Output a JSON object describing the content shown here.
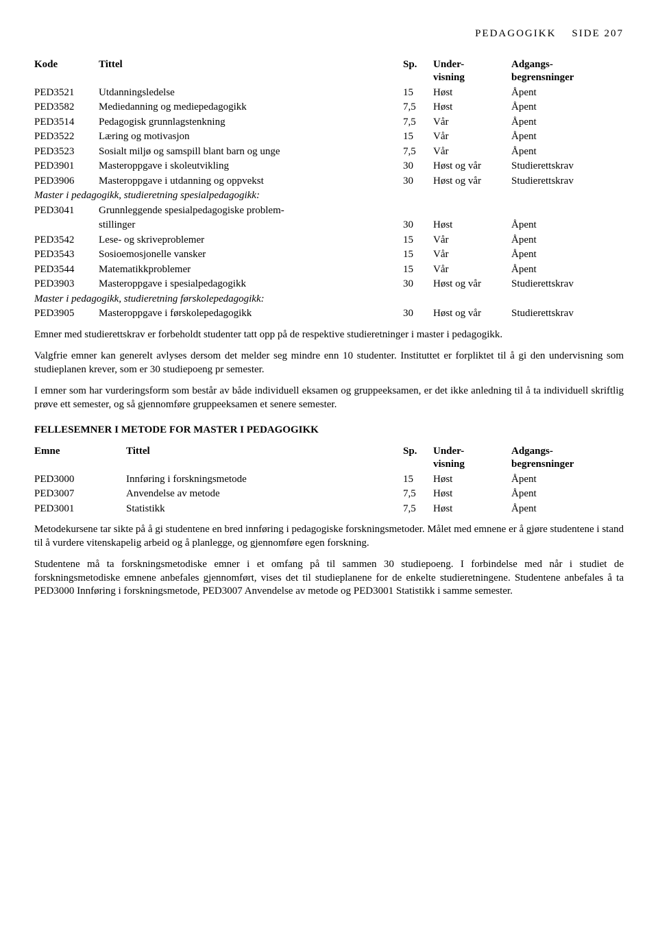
{
  "header": {
    "subject": "PEDAGOGIKK",
    "side_label": "SIDE",
    "page": "207"
  },
  "table1": {
    "headers": {
      "kode": "Kode",
      "tittel": "Tittel",
      "sp": "Sp.",
      "under1": "Under-",
      "under2": "visning",
      "adg1": "Adgangs-",
      "adg2": "begrensninger"
    },
    "rows": [
      {
        "kode": "PED3521",
        "tittel": "Utdanningsledelse",
        "sp": "15",
        "under": "Høst",
        "adg": "Åpent"
      },
      {
        "kode": "PED3582",
        "tittel": "Mediedanning og mediepedagogikk",
        "sp": "7,5",
        "under": "Høst",
        "adg": "Åpent"
      },
      {
        "kode": "PED3514",
        "tittel": "Pedagogisk grunnlagstenkning",
        "sp": "7,5",
        "under": "Vår",
        "adg": "Åpent"
      },
      {
        "kode": "PED3522",
        "tittel": "Læring og motivasjon",
        "sp": "15",
        "under": "Vår",
        "adg": "Åpent"
      },
      {
        "kode": "PED3523",
        "tittel": "Sosialt miljø og samspill blant barn og unge",
        "sp": "7,5",
        "under": "Vår",
        "adg": "Åpent"
      },
      {
        "kode": "PED3901",
        "tittel": "Masteroppgave i skoleutvikling",
        "sp": "30",
        "under": "Høst og vår",
        "adg": "Studierettskrav"
      },
      {
        "kode": "PED3906",
        "tittel": "Masteroppgave i utdanning og oppvekst",
        "sp": "30",
        "under": "Høst og vår",
        "adg": "Studierettskrav"
      }
    ],
    "section_spesial_title": "Master i pedagogikk, studieretning spesialpedagogikk:",
    "rows_spesial_a": {
      "kode": "PED3041",
      "tittel1": "Grunnleggende spesialpedagogiske problem-",
      "tittel2": "stillinger",
      "sp": "30",
      "under": "Høst",
      "adg": "Åpent"
    },
    "rows_spesial": [
      {
        "kode": "PED3542",
        "tittel": "Lese- og skriveproblemer",
        "sp": "15",
        "under": "Vår",
        "adg": "Åpent"
      },
      {
        "kode": "PED3543",
        "tittel": "Sosioemosjonelle vansker",
        "sp": "15",
        "under": "Vår",
        "adg": "Åpent"
      },
      {
        "kode": "PED3544",
        "tittel": "Matematikkproblemer",
        "sp": "15",
        "under": "Vår",
        "adg": "Åpent"
      },
      {
        "kode": "PED3903",
        "tittel": "Masteroppgave i spesialpedagogikk",
        "sp": "30",
        "under": "Høst og vår",
        "adg": "Studierettskrav"
      }
    ],
    "section_forskole_title": "Master i pedagogikk, studieretning førskolepedagogikk:",
    "rows_forskole": [
      {
        "kode": "PED3905",
        "tittel": "Masteroppgave i førskolepedagogikk",
        "sp": "30",
        "under": "Høst og vår",
        "adg": "Studierettskrav"
      }
    ]
  },
  "paragraphs": {
    "p1": "Emner med studierettskrav er forbeholdt studenter tatt opp på de respektive studieretninger i master i pedagogikk.",
    "p2": "Valgfrie emner kan generelt avlyses dersom det melder seg mindre enn 10 studenter. Instituttet er forpliktet til å gi den undervisning som studieplanen krever, som er 30 studiepoeng pr semester.",
    "p3": "I emner som har vurderingsform som består av både individuell eksamen og gruppeeksamen, er det ikke anledning til å ta individuell skriftlig prøve ett semester, og så gjennomføre gruppeeksamen et senere semester."
  },
  "section2": {
    "title": "FELLESEMNER I METODE FOR MASTER I PEDAGOGIKK",
    "headers": {
      "emne": "Emne",
      "tittel": "Tittel",
      "sp": "Sp.",
      "under1": "Under-",
      "under2": "visning",
      "adg1": "Adgangs-",
      "adg2": "begrensninger"
    },
    "rows": [
      {
        "emne": "PED3000",
        "tittel": "Innføring i forskningsmetode",
        "sp": "15",
        "under": "Høst",
        "adg": "Åpent"
      },
      {
        "emne": "PED3007",
        "tittel": "Anvendelse av metode",
        "sp": "7,5",
        "under": "Høst",
        "adg": "Åpent"
      },
      {
        "emne": "PED3001",
        "tittel": "Statistikk",
        "sp": "7,5",
        "under": "Høst",
        "adg": "Åpent"
      }
    ]
  },
  "paragraphs2": {
    "p4": "Metodekursene tar sikte på å gi studentene en bred innføring i pedagogiske forskningsmetoder. Målet med emnene er å gjøre studentene i stand til å vurdere vitenskapelig arbeid og å planlegge, og gjennomføre egen forskning.",
    "p5": "Studentene må ta forskningsmetodiske emner i et omfang på til sammen 30 studiepoeng. I forbindelse med når i studiet de forskningsmetodiske emnene anbefales gjennomført, vises det til studieplanene for de enkelte studieretningene. Studentene anbefales å ta PED3000 Innføring i forskningsmetode, PED3007 Anvendelse av metode og PED3001 Statistikk i samme semester."
  }
}
